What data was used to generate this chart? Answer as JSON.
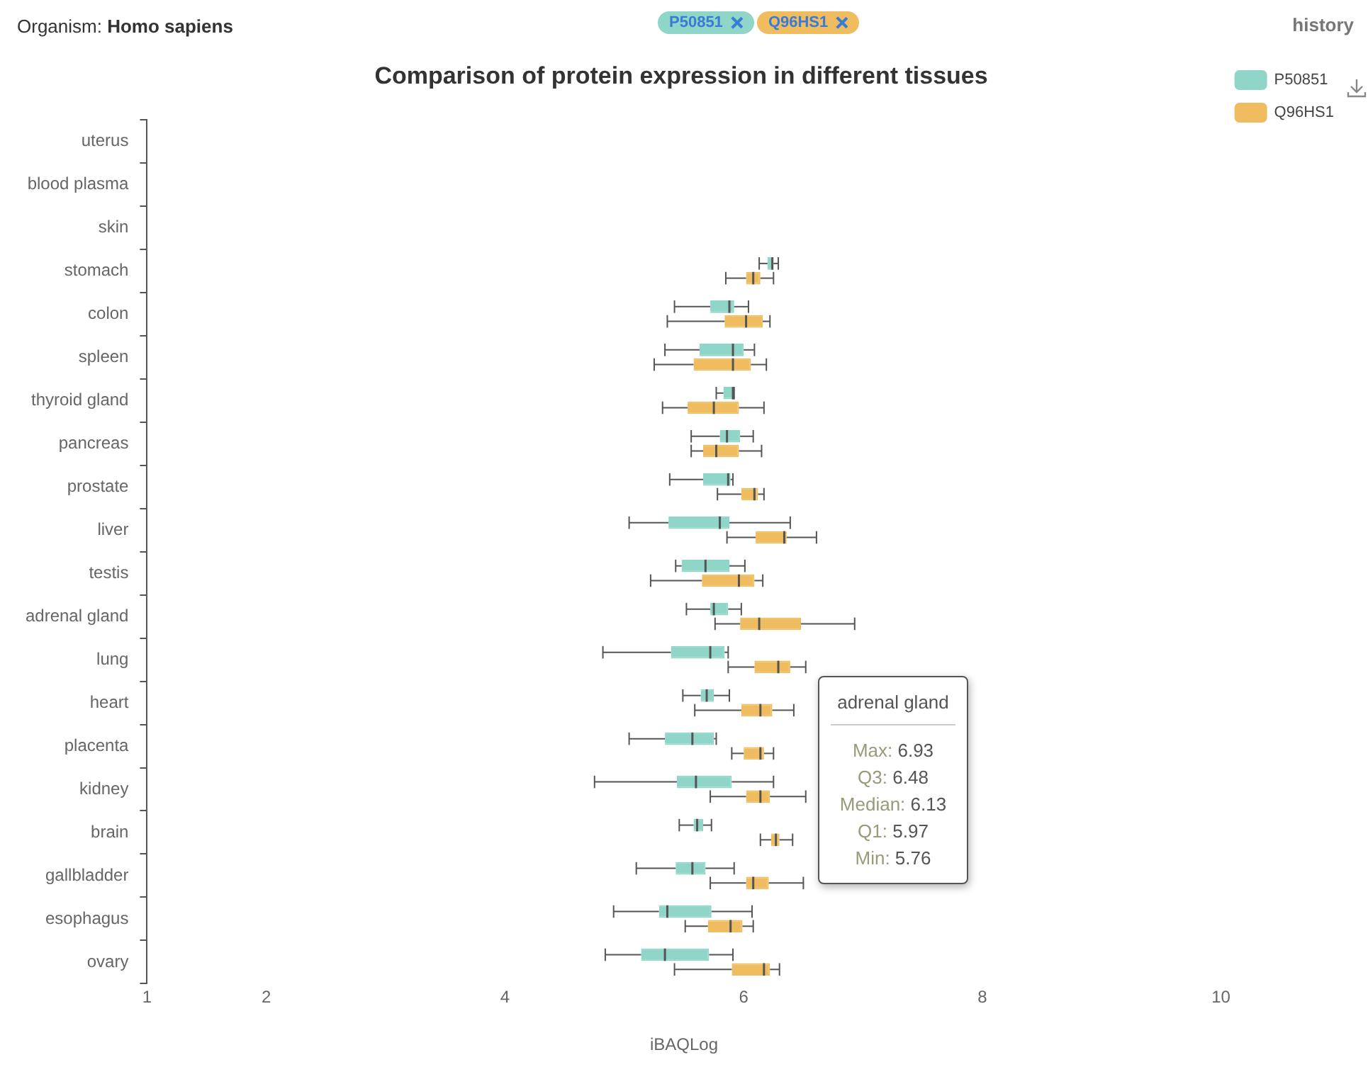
{
  "chart_data": {
    "type": "box",
    "orientation": "horizontal",
    "title": "Comparison of protein expression in different tissues",
    "xlabel": "iBAQLog",
    "categories": [
      "uterus",
      "blood plasma",
      "skin",
      "stomach",
      "colon",
      "spleen",
      "thyroid gland",
      "pancreas",
      "prostate",
      "liver",
      "testis",
      "adrenal gland",
      "lung",
      "heart",
      "placenta",
      "kidney",
      "brain",
      "gallbladder",
      "esophagus",
      "ovary"
    ],
    "xlim": [
      1,
      10
    ],
    "xticks": [
      1,
      2,
      4,
      6,
      8,
      10
    ],
    "grid": false,
    "legend": "top right",
    "annotations": [
      "Organism: Homo sapiens",
      "history",
      "adrenal gland",
      "Max: 6.93",
      "Q3: 6.48",
      "Median: 6.13",
      "Q1: 5.97",
      "Min: 5.76"
    ],
    "series": [
      {
        "name": "P50851",
        "color": "#8fd5c8",
        "boxes": [
          null,
          null,
          null,
          {
            "low": 6.13,
            "q1": 6.2,
            "median": 6.24,
            "q3": 6.25,
            "high": 6.29
          },
          {
            "low": 5.42,
            "q1": 5.72,
            "median": 5.88,
            "q3": 5.92,
            "high": 6.04
          },
          {
            "low": 5.34,
            "q1": 5.63,
            "median": 5.91,
            "q3": 6.0,
            "high": 6.09
          },
          {
            "low": 5.77,
            "q1": 5.83,
            "median": 5.91,
            "q3": 5.92,
            "high": 5.92
          },
          {
            "low": 5.56,
            "q1": 5.8,
            "median": 5.86,
            "q3": 5.97,
            "high": 6.08
          },
          {
            "low": 5.38,
            "q1": 5.66,
            "median": 5.87,
            "q3": 5.89,
            "high": 5.91
          },
          {
            "low": 5.04,
            "q1": 5.37,
            "median": 5.8,
            "q3": 5.88,
            "high": 6.39
          },
          {
            "low": 5.43,
            "q1": 5.48,
            "median": 5.68,
            "q3": 5.88,
            "high": 6.01
          },
          {
            "low": 5.52,
            "q1": 5.72,
            "median": 5.75,
            "q3": 5.87,
            "high": 5.98
          },
          {
            "low": 4.82,
            "q1": 5.39,
            "median": 5.72,
            "q3": 5.84,
            "high": 5.87
          },
          {
            "low": 5.49,
            "q1": 5.64,
            "median": 5.69,
            "q3": 5.75,
            "high": 5.88
          },
          {
            "low": 5.04,
            "q1": 5.34,
            "median": 5.57,
            "q3": 5.75,
            "high": 5.77
          },
          {
            "low": 4.75,
            "q1": 5.44,
            "median": 5.6,
            "q3": 5.9,
            "high": 6.25
          },
          {
            "low": 5.46,
            "q1": 5.58,
            "median": 5.61,
            "q3": 5.66,
            "high": 5.73
          },
          {
            "low": 5.1,
            "q1": 5.43,
            "median": 5.57,
            "q3": 5.68,
            "high": 5.92
          },
          {
            "low": 4.91,
            "q1": 5.29,
            "median": 5.36,
            "q3": 5.73,
            "high": 6.07
          },
          {
            "low": 4.84,
            "q1": 5.14,
            "median": 5.34,
            "q3": 5.71,
            "high": 5.91
          }
        ]
      },
      {
        "name": "Q96HS1",
        "color": "#efbd5f",
        "boxes": [
          null,
          null,
          null,
          {
            "low": 5.85,
            "q1": 6.02,
            "median": 6.08,
            "q3": 6.14,
            "high": 6.25
          },
          {
            "low": 5.36,
            "q1": 5.84,
            "median": 6.02,
            "q3": 6.16,
            "high": 6.22
          },
          {
            "low": 5.25,
            "q1": 5.58,
            "median": 5.91,
            "q3": 6.06,
            "high": 6.19
          },
          {
            "low": 5.32,
            "q1": 5.53,
            "median": 5.75,
            "q3": 5.96,
            "high": 6.17
          },
          {
            "low": 5.56,
            "q1": 5.66,
            "median": 5.77,
            "q3": 5.96,
            "high": 6.15
          },
          {
            "low": 5.78,
            "q1": 5.98,
            "median": 6.09,
            "q3": 6.12,
            "high": 6.17
          },
          {
            "low": 5.86,
            "q1": 6.1,
            "median": 6.34,
            "q3": 6.36,
            "high": 6.61
          },
          {
            "low": 5.22,
            "q1": 5.65,
            "median": 5.96,
            "q3": 6.09,
            "high": 6.16
          },
          {
            "low": 5.76,
            "q1": 5.97,
            "median": 6.13,
            "q3": 6.48,
            "high": 6.93
          },
          {
            "low": 5.87,
            "q1": 6.09,
            "median": 6.29,
            "q3": 6.39,
            "high": 6.52
          },
          {
            "low": 5.59,
            "q1": 5.98,
            "median": 6.14,
            "q3": 6.24,
            "high": 6.42
          },
          {
            "low": 5.9,
            "q1": 6.0,
            "median": 6.14,
            "q3": 6.17,
            "high": 6.25
          },
          {
            "low": 5.72,
            "q1": 6.02,
            "median": 6.14,
            "q3": 6.22,
            "high": 6.52
          },
          {
            "low": 6.14,
            "q1": 6.23,
            "median": 6.27,
            "q3": 6.3,
            "high": 6.41
          },
          {
            "low": 5.72,
            "q1": 6.02,
            "median": 6.08,
            "q3": 6.21,
            "high": 6.5
          },
          {
            "low": 5.51,
            "q1": 5.7,
            "median": 5.89,
            "q3": 5.99,
            "high": 6.08
          },
          {
            "low": 5.42,
            "q1": 5.9,
            "median": 6.17,
            "q3": 6.22,
            "high": 6.3
          }
        ]
      }
    ]
  }
}
